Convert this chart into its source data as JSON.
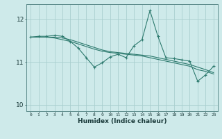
{
  "xlabel": "Humidex (Indice chaleur)",
  "ylabel": "",
  "bg_color": "#ceeaea",
  "grid_color": "#aacfcf",
  "line_color": "#2d7a6e",
  "xlim": [
    -0.5,
    23.5
  ],
  "ylim": [
    9.85,
    12.35
  ],
  "yticks": [
    10,
    11,
    12
  ],
  "xticks": [
    0,
    1,
    2,
    3,
    4,
    5,
    6,
    7,
    8,
    9,
    10,
    11,
    12,
    13,
    14,
    15,
    16,
    17,
    18,
    19,
    20,
    21,
    22,
    23
  ],
  "series1_x": [
    0,
    1,
    2,
    3,
    4,
    5,
    6,
    7,
    8,
    9,
    10,
    11,
    12,
    13,
    14,
    15,
    16,
    17,
    18,
    19,
    20,
    21,
    22,
    23
  ],
  "series1_y": [
    11.58,
    11.6,
    11.6,
    11.62,
    11.6,
    11.48,
    11.32,
    11.1,
    10.88,
    10.98,
    11.12,
    11.18,
    11.1,
    11.38,
    11.52,
    12.2,
    11.6,
    11.1,
    11.08,
    11.05,
    11.02,
    10.55,
    10.7,
    10.9
  ],
  "series2_x": [
    0,
    1,
    2,
    3,
    4,
    5,
    6,
    7,
    8,
    9,
    10,
    11,
    12,
    13,
    14,
    15,
    16,
    17,
    18,
    19,
    20,
    21,
    22,
    23
  ],
  "series2_y": [
    11.58,
    11.58,
    11.58,
    11.56,
    11.52,
    11.48,
    11.42,
    11.36,
    11.3,
    11.25,
    11.22,
    11.2,
    11.18,
    11.16,
    11.14,
    11.1,
    11.06,
    11.02,
    10.98,
    10.94,
    10.9,
    10.82,
    10.78,
    10.72
  ],
  "series3_x": [
    0,
    1,
    2,
    3,
    4,
    5,
    6,
    7,
    8,
    9,
    10,
    11,
    12,
    13,
    14,
    15,
    16,
    17,
    18,
    19,
    20,
    21,
    22,
    23
  ],
  "series3_y": [
    11.58,
    11.58,
    11.58,
    11.58,
    11.56,
    11.52,
    11.46,
    11.4,
    11.34,
    11.28,
    11.24,
    11.22,
    11.2,
    11.18,
    11.16,
    11.14,
    11.1,
    11.06,
    11.02,
    10.98,
    10.94,
    10.88,
    10.82,
    10.75
  ]
}
